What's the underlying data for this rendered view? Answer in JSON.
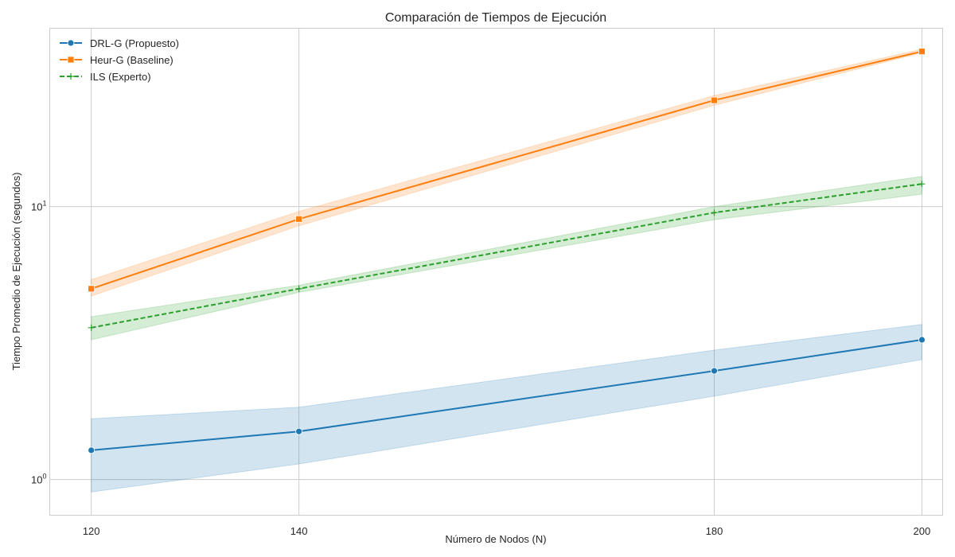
{
  "chart_data": {
    "type": "line",
    "title": "Comparación de Tiempos de Ejecución",
    "xlabel": "Número de Nodos (N)",
    "ylabel": "Tiempo Promedio de Ejecución (segundos)",
    "yscale": "log",
    "xlim": [
      116,
      202
    ],
    "ylim": [
      0.74,
      45
    ],
    "x_ticks": [
      120,
      140,
      180,
      200
    ],
    "y_ticks": [
      {
        "value": 1,
        "base": "10",
        "exp": "0"
      },
      {
        "value": 10,
        "base": "10",
        "exp": "1"
      }
    ],
    "grid": true,
    "legend_position": "top-left",
    "x": [
      120,
      140,
      180,
      200
    ],
    "series": [
      {
        "name": "DRL-G (Propuesto)",
        "marker": "circle",
        "dash": "solid",
        "color": "#1f77b4",
        "values": [
          1.28,
          1.5,
          2.5,
          3.25
        ],
        "lower": [
          0.9,
          1.14,
          2.02,
          2.75
        ],
        "upper": [
          1.67,
          1.84,
          2.98,
          3.7
        ]
      },
      {
        "name": "Heur-G (Baseline)",
        "marker": "square",
        "dash": "solid",
        "color": "#ff7f0e",
        "values": [
          5.0,
          9.0,
          24.5,
          37.0
        ],
        "lower": [
          4.7,
          8.5,
          23.5,
          36.6
        ],
        "upper": [
          5.4,
          9.6,
          25.5,
          37.7
        ]
      },
      {
        "name": "ILS (Experto)",
        "marker": "plus",
        "dash": "dashed",
        "color": "#2ca02c",
        "values": [
          3.6,
          5.0,
          9.5,
          12.1
        ],
        "lower": [
          3.25,
          4.85,
          8.95,
          11.1
        ],
        "upper": [
          3.95,
          5.15,
          10.0,
          12.9
        ]
      }
    ]
  }
}
